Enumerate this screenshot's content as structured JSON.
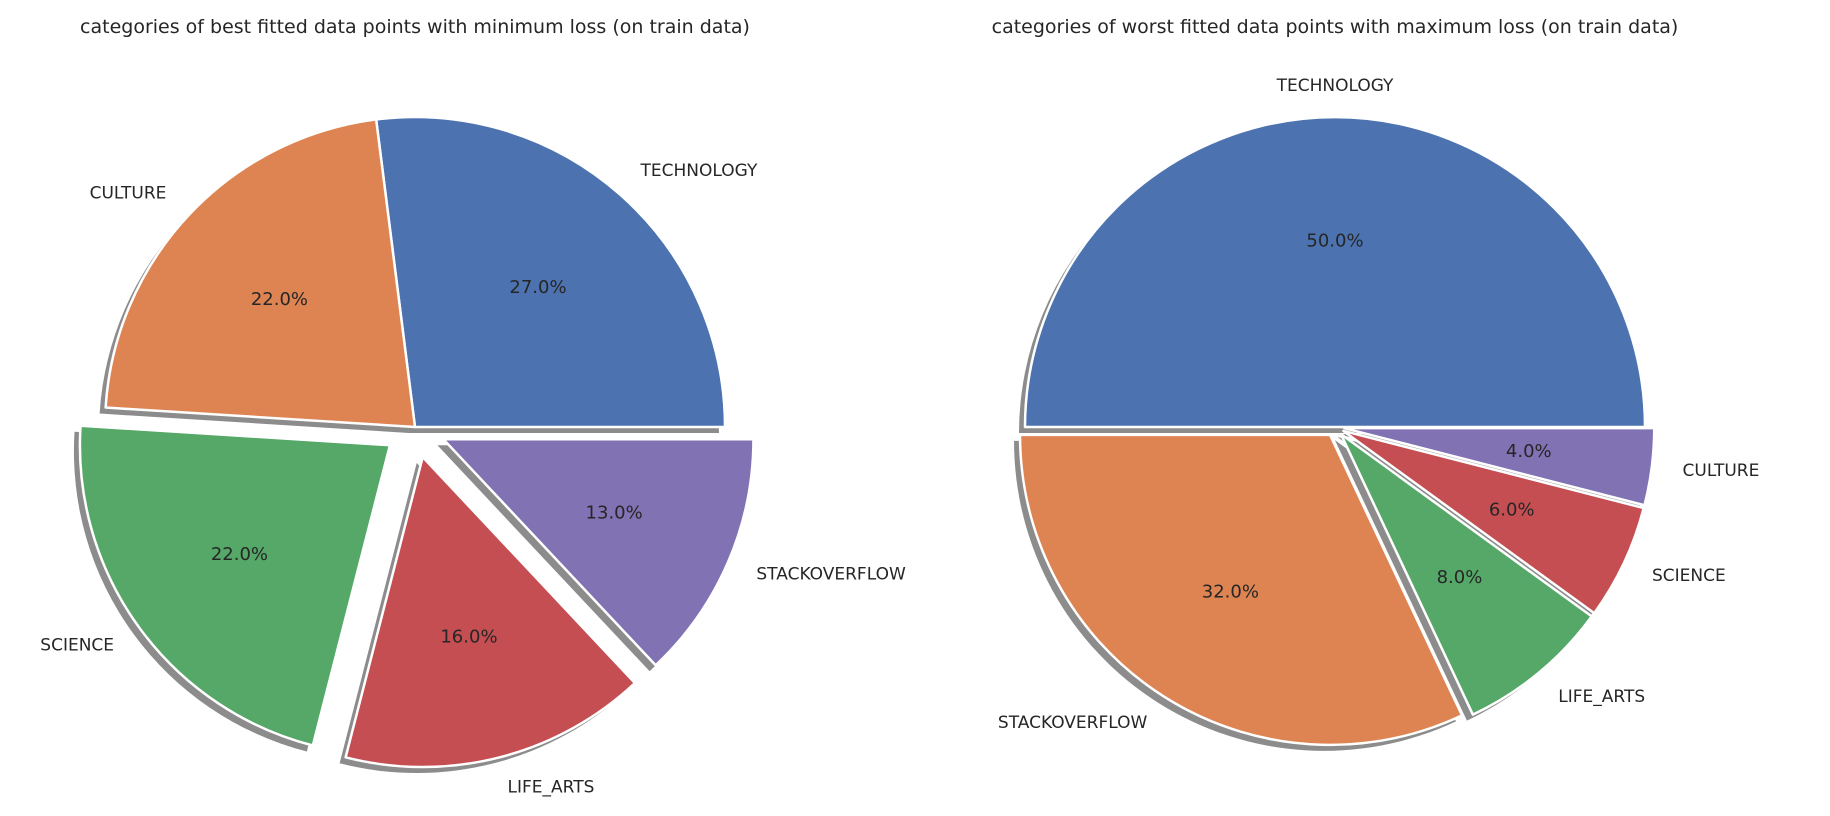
{
  "chart_data": [
    {
      "type": "pie",
      "title": "categories of best fitted data points with minimum loss (on train data)",
      "categories": [
        "TECHNOLOGY",
        "CULTURE",
        "SCIENCE",
        "LIFE_ARTS",
        "STACKOVERFLOW"
      ],
      "values": [
        27.0,
        22.0,
        22.0,
        16.0,
        13.0
      ],
      "labels": [
        "27.0%",
        "22.0%",
        "22.0%",
        "16.0%",
        "13.0%"
      ],
      "colors": [
        "#4c72b0",
        "#dd8452",
        "#55a868",
        "#c44e52",
        "#8172b3"
      ],
      "start_angle": 0,
      "exploded": [
        "SCIENCE",
        "LIFE_ARTS",
        "STACKOVERFLOW"
      ],
      "shadow": true
    },
    {
      "type": "pie",
      "title": "categories of worst fitted data points with maximum loss (on train data)",
      "categories": [
        "TECHNOLOGY",
        "STACKOVERFLOW",
        "LIFE_ARTS",
        "SCIENCE",
        "CULTURE"
      ],
      "values": [
        50.0,
        32.0,
        8.0,
        6.0,
        4.0
      ],
      "labels": [
        "50.0%",
        "32.0%",
        "8.0%",
        "6.0%",
        "4.0%"
      ],
      "colors": [
        "#4c72b0",
        "#dd8452",
        "#55a868",
        "#c44e52",
        "#8172b3"
      ],
      "start_angle": 0,
      "exploded": [
        "STACKOVERFLOW",
        "LIFE_ARTS",
        "SCIENCE",
        "CULTURE"
      ],
      "shadow": true
    }
  ]
}
